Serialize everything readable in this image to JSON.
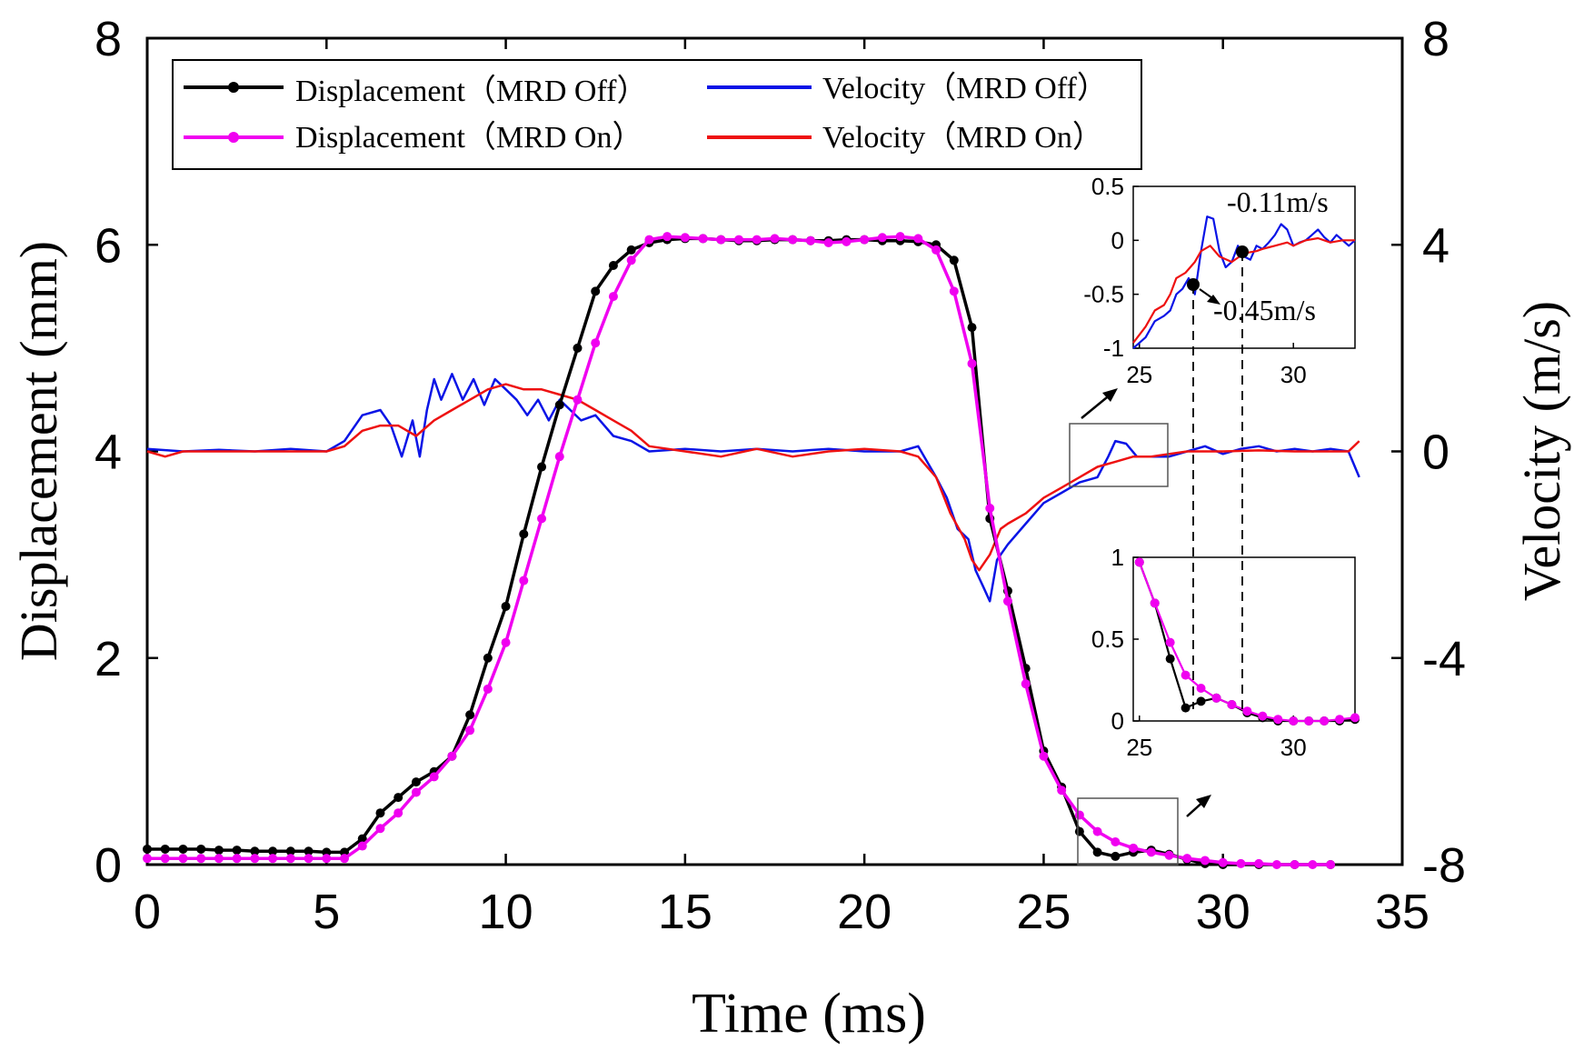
{
  "chart_data": {
    "type": "line",
    "title": "",
    "xlabel": "Time (ms)",
    "ylabel_left": "Displacement (mm)",
    "ylabel_right": "Velocity (m/s)",
    "xlim": [
      0,
      35
    ],
    "ylim_left": [
      0,
      8
    ],
    "ylim_right": [
      -8,
      8
    ],
    "x_ticks": [
      "0",
      "5",
      "10",
      "15",
      "20",
      "25",
      "30",
      "35"
    ],
    "y_left_ticks": [
      "0",
      "2",
      "4",
      "6",
      "8"
    ],
    "y_right_ticks": [
      "-8",
      "-4",
      "0",
      "4",
      "8"
    ],
    "legend": [
      {
        "label": "Displacement（MRD Off）",
        "color": "#000000",
        "marker": "circle"
      },
      {
        "label": "Velocity（MRD Off）",
        "color": "#0a14e6",
        "marker": "none"
      },
      {
        "label": "Displacement（MRD On）",
        "color": "#f000f0",
        "marker": "circle"
      },
      {
        "label": "Velocity（MRD On）",
        "color": "#ee1111",
        "marker": "none"
      }
    ],
    "legend_location": "top-left",
    "series": [
      {
        "name": "Displacement（MRD Off）",
        "axis": "left",
        "color": "#000000",
        "marker": "circle",
        "x": [
          0,
          0.5,
          1,
          1.5,
          2,
          2.5,
          3,
          3.5,
          4,
          4.5,
          5,
          5.5,
          6,
          6.5,
          7,
          7.5,
          8,
          8.5,
          9,
          9.5,
          10,
          10.5,
          11,
          11.5,
          12,
          12.5,
          13,
          13.5,
          14,
          14.5,
          15,
          15.5,
          16,
          16.5,
          17,
          17.5,
          18,
          18.5,
          19,
          19.5,
          20,
          20.5,
          21,
          21.5,
          22,
          22.5,
          23,
          23.5,
          24,
          24.5,
          25,
          25.5,
          26,
          26.5,
          27,
          27.5,
          28,
          28.5,
          29,
          29.5,
          30,
          31,
          32,
          33
        ],
        "y": [
          0.15,
          0.15,
          0.15,
          0.15,
          0.14,
          0.14,
          0.13,
          0.13,
          0.13,
          0.13,
          0.12,
          0.12,
          0.25,
          0.5,
          0.65,
          0.8,
          0.9,
          1.05,
          1.45,
          2.0,
          2.5,
          3.2,
          3.85,
          4.45,
          5.0,
          5.55,
          5.8,
          5.95,
          6.02,
          6.05,
          6.06,
          6.06,
          6.05,
          6.04,
          6.04,
          6.05,
          6.05,
          6.04,
          6.04,
          6.05,
          6.05,
          6.04,
          6.04,
          6.03,
          6.0,
          5.85,
          5.2,
          3.35,
          2.65,
          1.9,
          1.1,
          0.75,
          0.32,
          0.12,
          0.08,
          0.12,
          0.14,
          0.1,
          0.05,
          0.01,
          0.0,
          0.0,
          0.0,
          0.0
        ]
      },
      {
        "name": "Displacement（MRD On）",
        "axis": "left",
        "color": "#f000f0",
        "marker": "circle",
        "x": [
          0,
          0.5,
          1,
          1.5,
          2,
          2.5,
          3,
          3.5,
          4,
          4.5,
          5,
          5.5,
          6,
          6.5,
          7,
          7.5,
          8,
          8.5,
          9,
          9.5,
          10,
          10.5,
          11,
          11.5,
          12,
          12.5,
          13,
          13.5,
          14,
          14.5,
          15,
          15.5,
          16,
          16.5,
          17,
          17.5,
          18,
          18.5,
          19,
          19.5,
          20,
          20.5,
          21,
          21.5,
          22,
          22.5,
          23,
          23.5,
          24,
          24.5,
          25,
          25.5,
          26,
          26.5,
          27,
          27.5,
          28,
          28.5,
          29,
          29.5,
          30,
          30.5,
          31,
          31.5,
          32,
          32.5,
          33
        ],
        "y": [
          0.06,
          0.06,
          0.06,
          0.06,
          0.06,
          0.06,
          0.06,
          0.06,
          0.06,
          0.06,
          0.06,
          0.06,
          0.18,
          0.35,
          0.5,
          0.7,
          0.85,
          1.05,
          1.3,
          1.7,
          2.15,
          2.75,
          3.35,
          3.95,
          4.5,
          5.05,
          5.5,
          5.85,
          6.05,
          6.08,
          6.07,
          6.06,
          6.05,
          6.05,
          6.05,
          6.06,
          6.05,
          6.04,
          6.02,
          6.03,
          6.05,
          6.07,
          6.08,
          6.06,
          5.95,
          5.55,
          4.85,
          3.45,
          2.55,
          1.75,
          1.05,
          0.72,
          0.48,
          0.32,
          0.22,
          0.16,
          0.12,
          0.09,
          0.06,
          0.04,
          0.02,
          0.01,
          0.01,
          0.0,
          0.0,
          0.0,
          0.0
        ]
      },
      {
        "name": "Velocity（MRD Off）",
        "axis": "right",
        "color": "#0a14e6",
        "marker": "none",
        "x": [
          0,
          1,
          2,
          3,
          4,
          5,
          5.5,
          6,
          6.5,
          6.8,
          7.1,
          7.4,
          7.6,
          7.8,
          8,
          8.2,
          8.5,
          8.8,
          9.1,
          9.4,
          9.7,
          10,
          10.3,
          10.6,
          10.9,
          11.2,
          11.5,
          11.8,
          12.1,
          12.5,
          13,
          13.5,
          14,
          15,
          16,
          17,
          18,
          19,
          20,
          21,
          21.5,
          22,
          22.3,
          22.6,
          22.9,
          23.1,
          23.3,
          23.5,
          23.7,
          24,
          24.5,
          25,
          25.5,
          26,
          26.5,
          26.8,
          27,
          27.3,
          27.6,
          28,
          28.5,
          29,
          29.5,
          30,
          30.5,
          31,
          31.5,
          32,
          32.5,
          33,
          33.5,
          33.8
        ],
        "y": [
          0.05,
          0,
          0.03,
          0,
          0.05,
          0,
          0.2,
          0.7,
          0.8,
          0.5,
          -0.1,
          0.6,
          -0.1,
          0.8,
          1.4,
          1.0,
          1.5,
          1.0,
          1.4,
          0.9,
          1.4,
          1.2,
          1.0,
          0.7,
          1.0,
          0.6,
          1.0,
          0.8,
          0.6,
          0.7,
          0.3,
          0.2,
          0.0,
          0.05,
          0,
          0.05,
          0,
          0.05,
          0,
          0.0,
          0.1,
          -0.5,
          -0.9,
          -1.5,
          -1.7,
          -2.3,
          -2.6,
          -2.9,
          -2.1,
          -1.8,
          -1.4,
          -1.0,
          -0.8,
          -0.6,
          -0.5,
          -0.1,
          0.2,
          0.15,
          -0.1,
          -0.1,
          -0.1,
          0.0,
          0.1,
          -0.05,
          0.05,
          0.1,
          0.0,
          0.05,
          0.0,
          0.05,
          0.0,
          -0.5
        ]
      },
      {
        "name": "Velocity（MRD On）",
        "axis": "right",
        "color": "#ee1111",
        "marker": "none",
        "x": [
          0,
          0.5,
          1,
          2,
          3,
          4,
          5,
          5.5,
          6,
          6.5,
          7,
          7.5,
          8,
          8.5,
          9,
          9.5,
          10,
          10.5,
          11,
          11.5,
          12,
          12.5,
          13,
          13.5,
          14,
          15,
          16,
          17,
          18,
          19,
          20,
          21,
          21.5,
          22,
          22.4,
          22.8,
          23,
          23.2,
          23.5,
          23.8,
          24,
          24.5,
          25,
          25.5,
          26,
          26.5,
          27,
          27.5,
          28,
          28.5,
          29,
          30,
          31,
          32,
          33,
          33.5,
          33.8
        ],
        "y": [
          0,
          -0.1,
          0,
          0,
          0,
          0,
          0,
          0.1,
          0.4,
          0.5,
          0.5,
          0.3,
          0.6,
          0.8,
          1.0,
          1.2,
          1.3,
          1.2,
          1.2,
          1.1,
          1.0,
          0.8,
          0.6,
          0.4,
          0.1,
          0,
          -0.1,
          0.05,
          -0.1,
          0,
          0.05,
          0,
          -0.1,
          -0.5,
          -1.2,
          -1.7,
          -2.1,
          -2.3,
          -2.0,
          -1.5,
          -1.4,
          -1.2,
          -0.9,
          -0.7,
          -0.5,
          -0.3,
          -0.2,
          -0.1,
          -0.1,
          -0.05,
          0.0,
          0,
          0.02,
          0,
          0,
          0,
          0.2
        ]
      }
    ],
    "insets": [
      {
        "name": "velocity-zoom",
        "xlim": [
          24.8,
          32
        ],
        "ylim": [
          -1,
          0.5
        ],
        "x_ticks": [
          "25",
          "30"
        ],
        "y_ticks": [
          "0.5",
          "0",
          "-0.5",
          "-1"
        ],
        "annotations": [
          "-0.11m/s",
          "-0.45m/s"
        ],
        "marked_points": [
          {
            "x": 26.8,
            "y": -0.45
          },
          {
            "x": 28.4,
            "y": -0.11
          }
        ],
        "series": [
          {
            "name": "Velocity（MRD Off）",
            "color": "#0a14e6",
            "x": [
              24.8,
              25.2,
              25.5,
              25.8,
              26,
              26.2,
              26.4,
              26.6,
              26.8,
              27,
              27.2,
              27.4,
              27.6,
              27.8,
              28,
              28.2,
              28.4,
              28.6,
              28.8,
              29,
              29.2,
              29.4,
              29.6,
              29.8,
              30,
              30.2,
              30.4,
              30.6,
              30.8,
              31,
              31.2,
              31.4,
              31.6,
              31.8,
              32
            ],
            "y": [
              -1.0,
              -0.9,
              -0.75,
              -0.7,
              -0.65,
              -0.5,
              -0.45,
              -0.35,
              -0.5,
              -0.1,
              0.22,
              0.2,
              -0.1,
              -0.25,
              -0.2,
              -0.05,
              -0.15,
              -0.18,
              -0.05,
              -0.08,
              -0.02,
              0.05,
              0.15,
              0.1,
              -0.05,
              -0.02,
              0.0,
              0.05,
              0.1,
              0.03,
              -0.02,
              0.05,
              0.0,
              -0.05,
              0.0
            ]
          },
          {
            "name": "Velocity（MRD On）",
            "color": "#ee1111",
            "x": [
              24.8,
              25.2,
              25.5,
              25.8,
              26,
              26.2,
              26.5,
              26.8,
              27,
              27.3,
              27.6,
              28,
              28.4,
              28.8,
              29,
              29.4,
              29.8,
              30,
              30.4,
              30.8,
              31.2,
              31.6,
              32
            ],
            "y": [
              -0.95,
              -0.8,
              -0.65,
              -0.6,
              -0.5,
              -0.35,
              -0.3,
              -0.2,
              -0.1,
              -0.05,
              -0.15,
              -0.2,
              -0.12,
              -0.1,
              -0.08,
              -0.05,
              -0.02,
              -0.05,
              0.0,
              0.02,
              -0.02,
              0.0,
              0.0
            ]
          }
        ]
      },
      {
        "name": "displacement-zoom",
        "xlim": [
          24.8,
          32
        ],
        "ylim": [
          0,
          1
        ],
        "x_ticks": [
          "25",
          "30"
        ],
        "y_ticks": [
          "1",
          "0.5",
          "0"
        ],
        "series": [
          {
            "name": "Displacement（MRD Off）",
            "color": "#000000",
            "marker": "circle",
            "x": [
              25,
              25.5,
              26,
              26.5,
              27,
              27.5,
              28,
              28.5,
              29,
              29.5,
              30,
              30.5,
              31,
              31.5,
              32
            ],
            "y": [
              0.97,
              0.72,
              0.38,
              0.08,
              0.12,
              0.14,
              0.1,
              0.05,
              0.02,
              0.0,
              0.0,
              0.0,
              0.0,
              0.0,
              0.01
            ]
          },
          {
            "name": "Displacement（MRD On）",
            "color": "#f000f0",
            "marker": "circle",
            "x": [
              25,
              25.5,
              26,
              26.5,
              27,
              27.5,
              28,
              28.5,
              29,
              29.5,
              30,
              30.5,
              31,
              31.5,
              32
            ],
            "y": [
              0.97,
              0.72,
              0.48,
              0.28,
              0.2,
              0.14,
              0.1,
              0.06,
              0.03,
              0.01,
              0.0,
              0.0,
              0.0,
              0.01,
              0.02
            ]
          }
        ]
      }
    ]
  }
}
